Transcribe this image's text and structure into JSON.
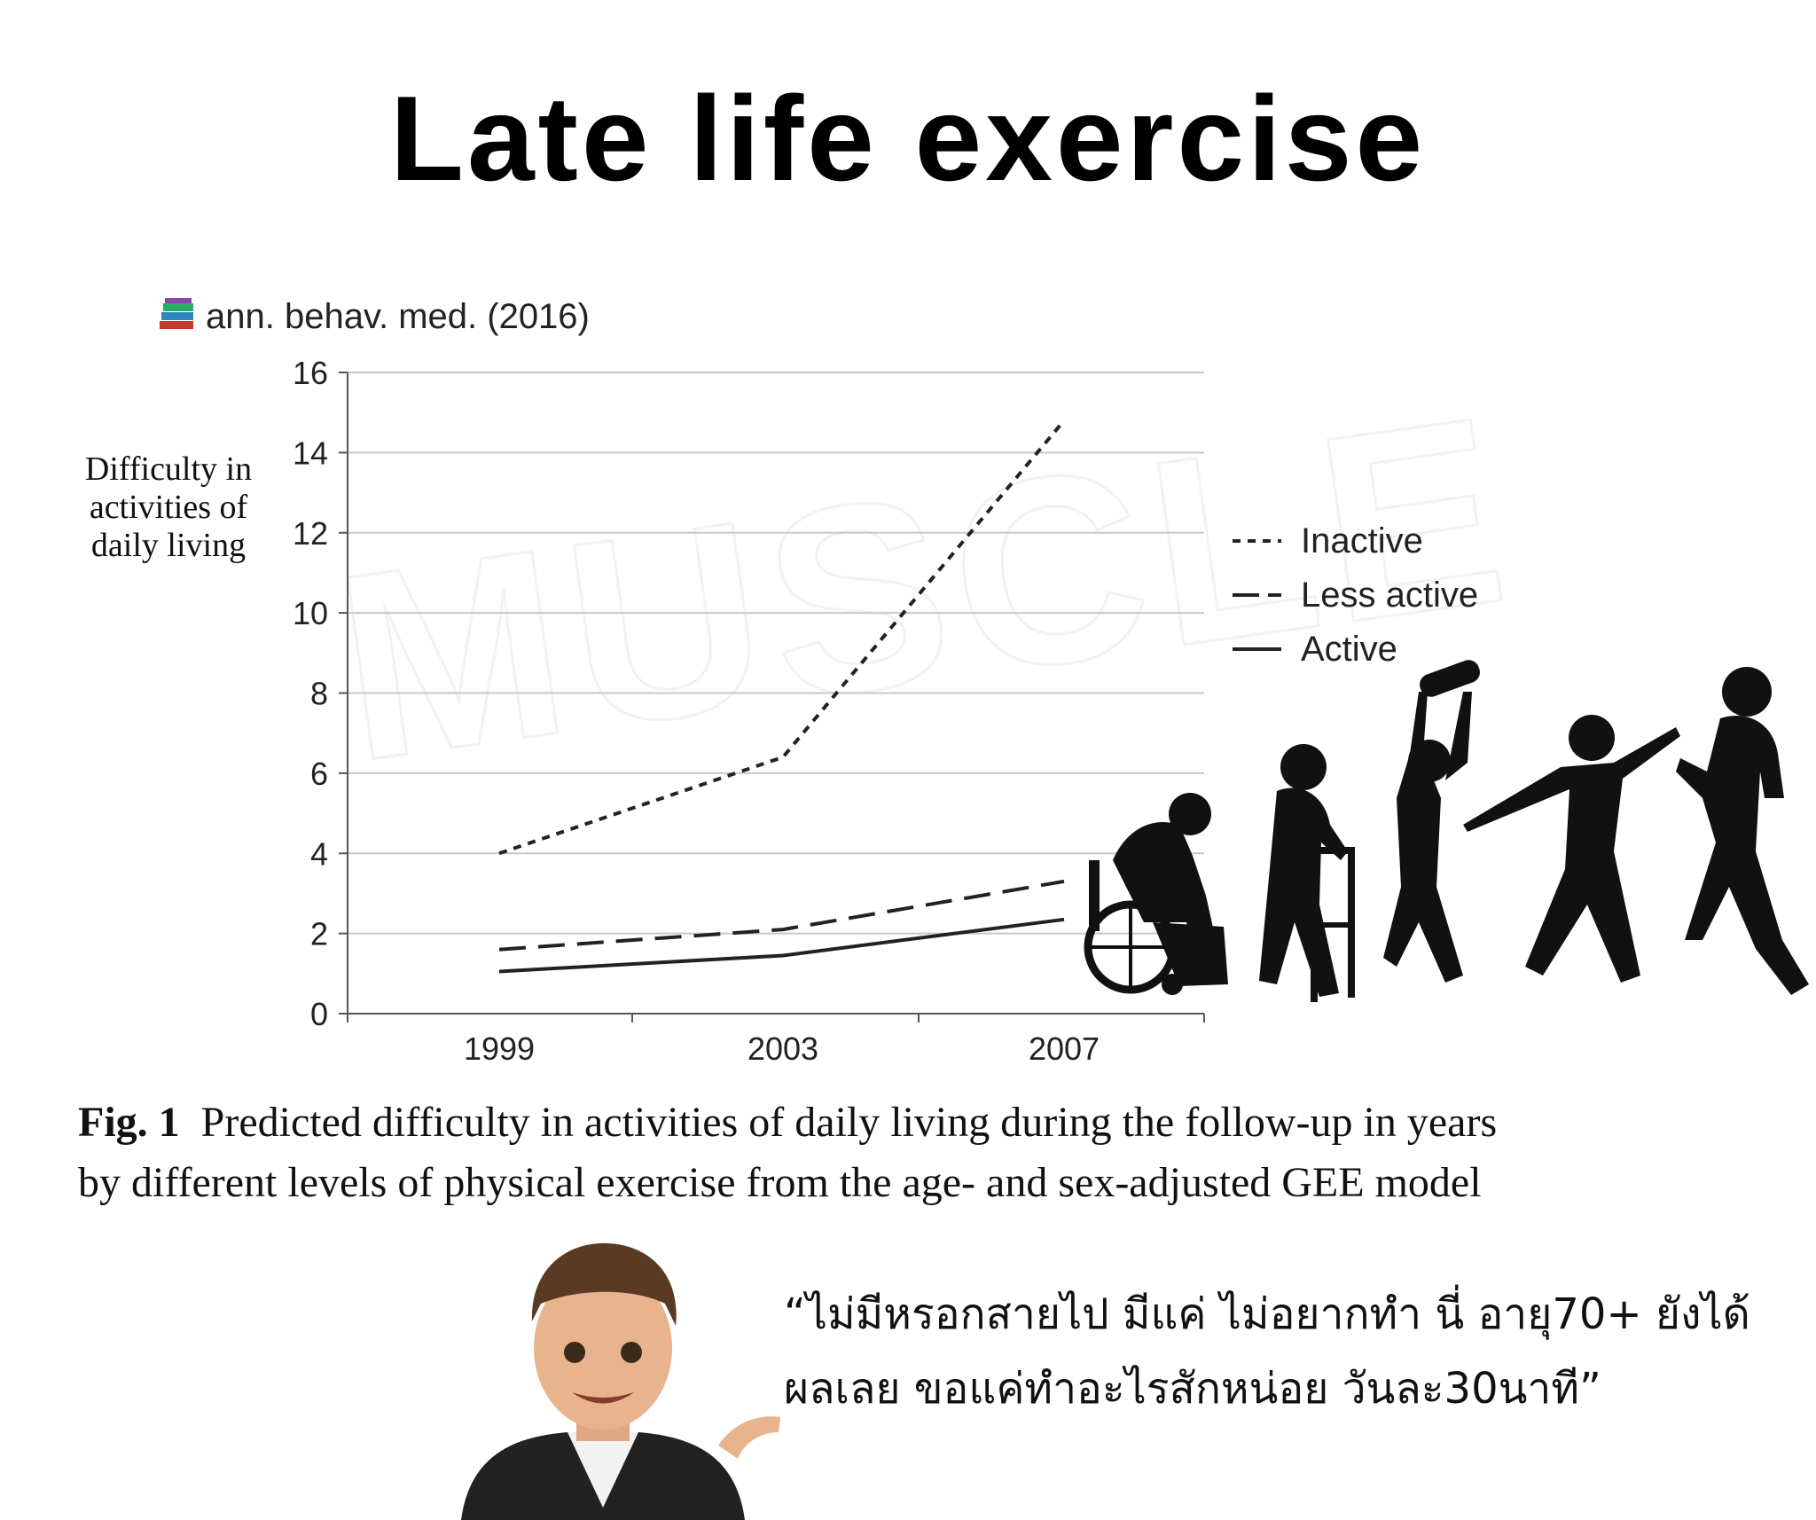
{
  "page": {
    "title": "Late life exercise",
    "source": "ann. behav. med. (2016)",
    "caption_label": "Fig. 1",
    "caption_text": "Predicted difficulty in activities of daily living during the follow-up in years by different levels of physical exercise from the age- and sex-adjusted GEE model",
    "quote": "“ไม่มีหรอกสายไป มีแค่ ไม่อยากทำ นี่ อายุ70+ ยังได้ผลเลย ขอแค่ทำอะไรสักหน่อย วันละ30นาที”",
    "icons": [
      "books-icon",
      "exercise-silhouettes",
      "avatar"
    ]
  },
  "chart_data": {
    "type": "line",
    "title": "",
    "xlabel": "",
    "ylabel": "Difficulty in activities of daily living",
    "x": [
      "1999",
      "2003",
      "2007"
    ],
    "ylim": [
      0,
      16
    ],
    "yticks": [
      0,
      2,
      4,
      6,
      8,
      10,
      12,
      14,
      16
    ],
    "grid": true,
    "legend": "right",
    "series": [
      {
        "name": "Inactive",
        "style": "dotted",
        "values": [
          4.0,
          6.4,
          14.8
        ]
      },
      {
        "name": "Less active",
        "style": "dashed",
        "values": [
          1.6,
          2.1,
          3.3
        ]
      },
      {
        "name": "Active",
        "style": "solid",
        "values": [
          1.05,
          1.45,
          2.35
        ]
      }
    ]
  }
}
